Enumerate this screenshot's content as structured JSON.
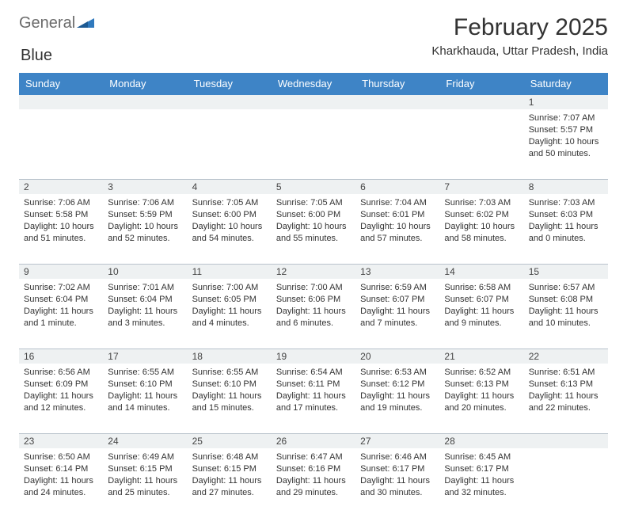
{
  "logo": {
    "part1": "General",
    "part2": "Blue"
  },
  "title": "February 2025",
  "subtitle": "Kharkhauda, Uttar Pradesh, India",
  "colors": {
    "header_bg": "#3e84c6",
    "header_text": "#ffffff",
    "daynum_bg": "#eef1f2",
    "divider": "#b9c3cc",
    "text": "#333333",
    "logo_gray": "#6b6b6b",
    "logo_blue": "#2f79bd"
  },
  "dayNames": [
    "Sunday",
    "Monday",
    "Tuesday",
    "Wednesday",
    "Thursday",
    "Friday",
    "Saturday"
  ],
  "weeks": [
    [
      {
        "n": "",
        "sr": "",
        "ss": "",
        "dl": ""
      },
      {
        "n": "",
        "sr": "",
        "ss": "",
        "dl": ""
      },
      {
        "n": "",
        "sr": "",
        "ss": "",
        "dl": ""
      },
      {
        "n": "",
        "sr": "",
        "ss": "",
        "dl": ""
      },
      {
        "n": "",
        "sr": "",
        "ss": "",
        "dl": ""
      },
      {
        "n": "",
        "sr": "",
        "ss": "",
        "dl": ""
      },
      {
        "n": "1",
        "sr": "Sunrise: 7:07 AM",
        "ss": "Sunset: 5:57 PM",
        "dl": "Daylight: 10 hours and 50 minutes."
      }
    ],
    [
      {
        "n": "2",
        "sr": "Sunrise: 7:06 AM",
        "ss": "Sunset: 5:58 PM",
        "dl": "Daylight: 10 hours and 51 minutes."
      },
      {
        "n": "3",
        "sr": "Sunrise: 7:06 AM",
        "ss": "Sunset: 5:59 PM",
        "dl": "Daylight: 10 hours and 52 minutes."
      },
      {
        "n": "4",
        "sr": "Sunrise: 7:05 AM",
        "ss": "Sunset: 6:00 PM",
        "dl": "Daylight: 10 hours and 54 minutes."
      },
      {
        "n": "5",
        "sr": "Sunrise: 7:05 AM",
        "ss": "Sunset: 6:00 PM",
        "dl": "Daylight: 10 hours and 55 minutes."
      },
      {
        "n": "6",
        "sr": "Sunrise: 7:04 AM",
        "ss": "Sunset: 6:01 PM",
        "dl": "Daylight: 10 hours and 57 minutes."
      },
      {
        "n": "7",
        "sr": "Sunrise: 7:03 AM",
        "ss": "Sunset: 6:02 PM",
        "dl": "Daylight: 10 hours and 58 minutes."
      },
      {
        "n": "8",
        "sr": "Sunrise: 7:03 AM",
        "ss": "Sunset: 6:03 PM",
        "dl": "Daylight: 11 hours and 0 minutes."
      }
    ],
    [
      {
        "n": "9",
        "sr": "Sunrise: 7:02 AM",
        "ss": "Sunset: 6:04 PM",
        "dl": "Daylight: 11 hours and 1 minute."
      },
      {
        "n": "10",
        "sr": "Sunrise: 7:01 AM",
        "ss": "Sunset: 6:04 PM",
        "dl": "Daylight: 11 hours and 3 minutes."
      },
      {
        "n": "11",
        "sr": "Sunrise: 7:00 AM",
        "ss": "Sunset: 6:05 PM",
        "dl": "Daylight: 11 hours and 4 minutes."
      },
      {
        "n": "12",
        "sr": "Sunrise: 7:00 AM",
        "ss": "Sunset: 6:06 PM",
        "dl": "Daylight: 11 hours and 6 minutes."
      },
      {
        "n": "13",
        "sr": "Sunrise: 6:59 AM",
        "ss": "Sunset: 6:07 PM",
        "dl": "Daylight: 11 hours and 7 minutes."
      },
      {
        "n": "14",
        "sr": "Sunrise: 6:58 AM",
        "ss": "Sunset: 6:07 PM",
        "dl": "Daylight: 11 hours and 9 minutes."
      },
      {
        "n": "15",
        "sr": "Sunrise: 6:57 AM",
        "ss": "Sunset: 6:08 PM",
        "dl": "Daylight: 11 hours and 10 minutes."
      }
    ],
    [
      {
        "n": "16",
        "sr": "Sunrise: 6:56 AM",
        "ss": "Sunset: 6:09 PM",
        "dl": "Daylight: 11 hours and 12 minutes."
      },
      {
        "n": "17",
        "sr": "Sunrise: 6:55 AM",
        "ss": "Sunset: 6:10 PM",
        "dl": "Daylight: 11 hours and 14 minutes."
      },
      {
        "n": "18",
        "sr": "Sunrise: 6:55 AM",
        "ss": "Sunset: 6:10 PM",
        "dl": "Daylight: 11 hours and 15 minutes."
      },
      {
        "n": "19",
        "sr": "Sunrise: 6:54 AM",
        "ss": "Sunset: 6:11 PM",
        "dl": "Daylight: 11 hours and 17 minutes."
      },
      {
        "n": "20",
        "sr": "Sunrise: 6:53 AM",
        "ss": "Sunset: 6:12 PM",
        "dl": "Daylight: 11 hours and 19 minutes."
      },
      {
        "n": "21",
        "sr": "Sunrise: 6:52 AM",
        "ss": "Sunset: 6:13 PM",
        "dl": "Daylight: 11 hours and 20 minutes."
      },
      {
        "n": "22",
        "sr": "Sunrise: 6:51 AM",
        "ss": "Sunset: 6:13 PM",
        "dl": "Daylight: 11 hours and 22 minutes."
      }
    ],
    [
      {
        "n": "23",
        "sr": "Sunrise: 6:50 AM",
        "ss": "Sunset: 6:14 PM",
        "dl": "Daylight: 11 hours and 24 minutes."
      },
      {
        "n": "24",
        "sr": "Sunrise: 6:49 AM",
        "ss": "Sunset: 6:15 PM",
        "dl": "Daylight: 11 hours and 25 minutes."
      },
      {
        "n": "25",
        "sr": "Sunrise: 6:48 AM",
        "ss": "Sunset: 6:15 PM",
        "dl": "Daylight: 11 hours and 27 minutes."
      },
      {
        "n": "26",
        "sr": "Sunrise: 6:47 AM",
        "ss": "Sunset: 6:16 PM",
        "dl": "Daylight: 11 hours and 29 minutes."
      },
      {
        "n": "27",
        "sr": "Sunrise: 6:46 AM",
        "ss": "Sunset: 6:17 PM",
        "dl": "Daylight: 11 hours and 30 minutes."
      },
      {
        "n": "28",
        "sr": "Sunrise: 6:45 AM",
        "ss": "Sunset: 6:17 PM",
        "dl": "Daylight: 11 hours and 32 minutes."
      },
      {
        "n": "",
        "sr": "",
        "ss": "",
        "dl": ""
      }
    ]
  ]
}
